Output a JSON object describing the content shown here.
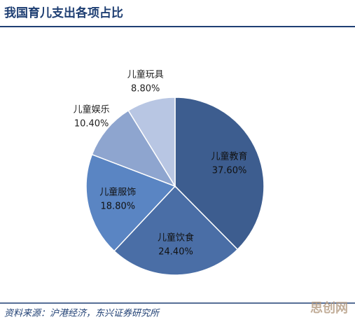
{
  "chart_data": {
    "type": "pie",
    "title": "我国育儿支出各项占比",
    "categories": [
      "儿童教育",
      "儿童饮食",
      "儿童服饰",
      "儿童娱乐",
      "儿童玩具"
    ],
    "values": [
      37.6,
      24.4,
      18.8,
      10.4,
      8.8
    ],
    "value_labels": [
      "37.60%",
      "24.40%",
      "18.80%",
      "10.40%",
      "8.80%"
    ],
    "colors": [
      "#3d5d8f",
      "#4a6ea6",
      "#5a85c3",
      "#8ea5cf",
      "#b8c6e3"
    ],
    "source": "资料来源：沪港经济，东兴证券研究所",
    "watermark": "思创网"
  }
}
